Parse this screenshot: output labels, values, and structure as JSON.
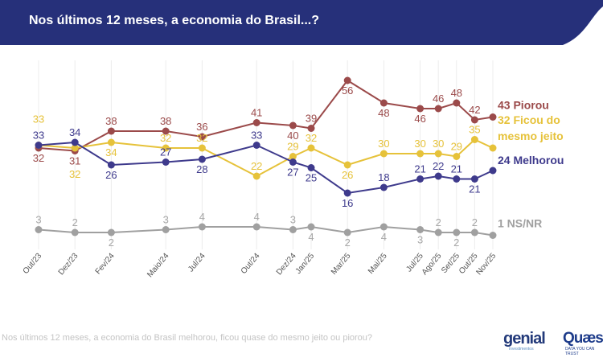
{
  "header": {
    "title": "Nos últimos 12 meses, a economia do Brasil...?",
    "color": "#26307a"
  },
  "footer": {
    "note": "Nos últimos 12 meses, a economia do Brasil melhorou, ficou quase do mesmo jeito ou piorou?",
    "logo_genial": "genial",
    "logo_genial_sub": "investimentos",
    "logo_quaest": "Quaest",
    "logo_quaest_sub": "DATA YOU CAN TRUST"
  },
  "chart_data": {
    "type": "line",
    "categories": [
      "Out/23",
      "Dez/23",
      "Fev/24",
      "Maio/24",
      "Jul/24",
      "Out/24",
      "Dez/24",
      "Jan/25",
      "Mar/25",
      "Mai/25",
      "Jul/25",
      "Ago/25",
      "Set/25",
      "Out/25",
      "Nov/25"
    ],
    "grid": "vertical",
    "legend": "right end labels",
    "series": [
      {
        "name": "Piorou",
        "end_label": "43 Piorou",
        "color": "#9b4a4a",
        "values": [
          32,
          31,
          38,
          38,
          36,
          41,
          40,
          39,
          56,
          48,
          46,
          46,
          48,
          42,
          43
        ]
      },
      {
        "name": "Ficou do mesmo jeito",
        "end_label": [
          "32 Ficou do",
          "mesmo jeito"
        ],
        "color": "#e6c23a",
        "values": [
          33,
          32,
          34,
          32,
          32,
          22,
          29,
          32,
          26,
          30,
          30,
          30,
          29,
          35,
          32
        ]
      },
      {
        "name": "Melhorou",
        "end_label": "24 Melhorou",
        "color": "#3e3a8c",
        "values": [
          33,
          34,
          26,
          27,
          28,
          33,
          27,
          25,
          16,
          18,
          21,
          22,
          21,
          21,
          24
        ]
      },
      {
        "name": "NS/NR",
        "end_label": "1 NS/NR",
        "color": "#a0a0a0",
        "values": [
          3,
          2,
          2,
          3,
          4,
          4,
          3,
          4,
          2,
          4,
          3,
          2,
          2,
          2,
          1
        ]
      }
    ]
  }
}
